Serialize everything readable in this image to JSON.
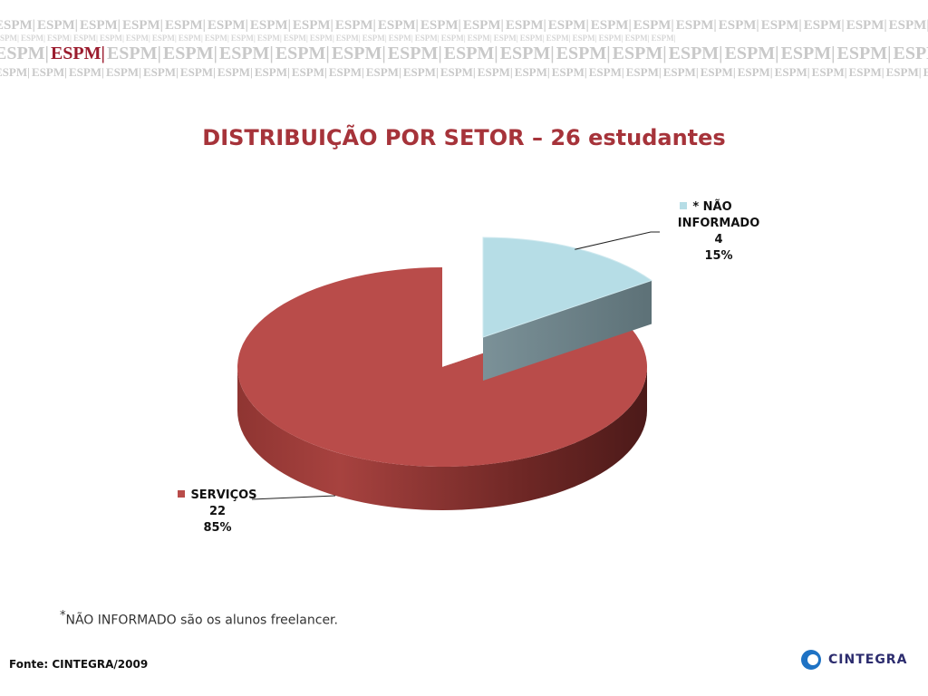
{
  "header": {
    "brand_word": "ESPM",
    "brand_separator": "|"
  },
  "chart_data": {
    "type": "pie",
    "title": "DISTRIBUIÇÃO POR SETOR – 26 estudantes",
    "legend": "labels beside slices",
    "slices": [
      {
        "label": "SERVIÇOS",
        "value": 22,
        "percent": "85%",
        "color": "#b94c4a"
      },
      {
        "label": "* NÃO INFORMADO",
        "value": 4,
        "percent": "15%",
        "color": "#b6dde6"
      }
    ]
  },
  "footnote": {
    "marker": "*",
    "text": "NÃO INFORMADO são os alunos freelancer."
  },
  "source": "Fonte: CINTEGRA/2009",
  "logo": {
    "text": "CINTEGRA",
    "color": "#1e72c4"
  }
}
